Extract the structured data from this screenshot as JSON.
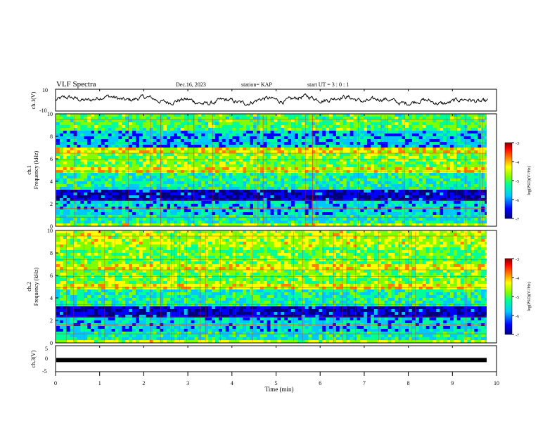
{
  "header": {
    "title": "VLF Spectra",
    "date": "Dec.16, 2023",
    "station": "station= KAP",
    "start": "start  UT =   3 : 0  : 1"
  },
  "chart_data": [
    {
      "type": "line",
      "ylabel": "ch.1(V)",
      "ylim": [
        -10,
        10
      ],
      "yticks": [
        "10",
        "-10"
      ],
      "xlim": [
        0,
        10
      ],
      "description_series": "waveform"
    },
    {
      "type": "heatmap",
      "ylabel_line1": "ch.1",
      "ylabel_line2": "Frequency (kHz)",
      "ylim": [
        0,
        10
      ],
      "yticks": [
        "0",
        "2",
        "4",
        "6",
        "8",
        "10"
      ],
      "xlim": [
        0,
        10
      ],
      "colorbar": {
        "label": "log(PSD)(V²/Hz)",
        "ticks": [
          "-3",
          "-4",
          "-5",
          "-6",
          "-7"
        ],
        "range": [
          -7,
          -3
        ]
      }
    },
    {
      "type": "heatmap",
      "ylabel_line1": "ch.2",
      "ylabel_line2": "Frequency (kHz)",
      "ylim": [
        0,
        10
      ],
      "yticks": [
        "0",
        "2",
        "4",
        "6",
        "8",
        "10"
      ],
      "xlim": [
        0,
        10
      ],
      "colorbar": {
        "label": "log(PSD)(V²/Hz)",
        "ticks": [
          "-3",
          "-4",
          "-5",
          "-6",
          "-7"
        ],
        "range": [
          -7,
          -3
        ]
      }
    },
    {
      "type": "line",
      "ylabel": "ch.3(V)",
      "ylim": [
        -5,
        5
      ],
      "yticks": [
        "5",
        "0",
        "-5"
      ],
      "constant_value": -0.5,
      "xlim": [
        0,
        10
      ]
    }
  ],
  "xaxis": {
    "label": "Time  (min)",
    "ticks": [
      "0",
      "1",
      "2",
      "3",
      "4",
      "5",
      "6",
      "7",
      "8",
      "9",
      "10"
    ]
  },
  "colors": {
    "palette": [
      "#00007f",
      "#0000ff",
      "#00c8ff",
      "#00ff96",
      "#7fff00",
      "#ffff00",
      "#ff8000",
      "#ff0000",
      "#7f0000"
    ]
  }
}
